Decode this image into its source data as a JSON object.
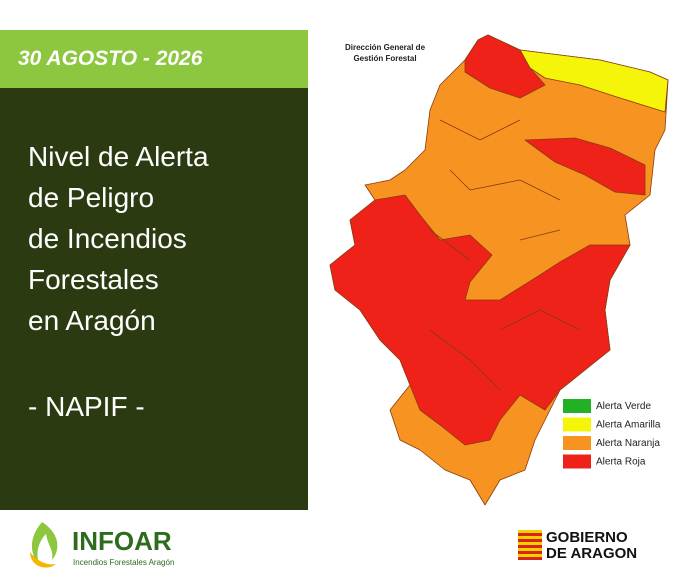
{
  "header": {
    "date": "30 AGOSTO - 2026"
  },
  "title": [
    "Nivel de Alerta",
    "de Peligro",
    "de Incendios",
    "Forestales",
    "en Aragón"
  ],
  "subtitle": "- NAPIF -",
  "map": {
    "source": [
      "Dirección General de",
      "Gestión Forestal"
    ],
    "legend": [
      {
        "label": "Alerta Verde",
        "color": "#22b024"
      },
      {
        "label": "Alerta Amarilla",
        "color": "#f5f50a"
      },
      {
        "label": "Alerta Naranja",
        "color": "#f79320"
      },
      {
        "label": "Alerta Roja",
        "color": "#ee2218"
      }
    ]
  },
  "footer": {
    "infoar": "INFOAR",
    "infoar_sub": "Incendios Forestales Aragón",
    "gobierno": [
      "GOBIERNO",
      "DE ARAGON"
    ]
  }
}
